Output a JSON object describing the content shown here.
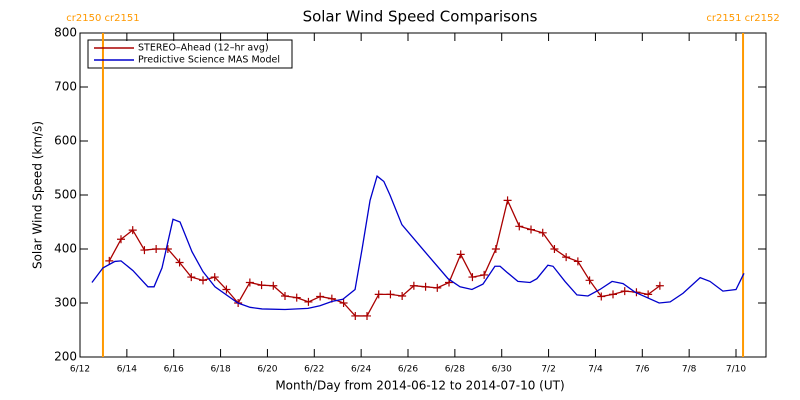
{
  "chart_data": {
    "type": "line",
    "title": "Solar Wind Speed Comparisons",
    "xlabel": "Month/Day from 2014-06-12 to 2014-07-10 (UT)",
    "ylabel": "Solar Wind Speed (km/s)",
    "xlim": [
      0,
      29.28
    ],
    "ylim": [
      200,
      800
    ],
    "yticks": [
      200,
      300,
      400,
      500,
      600,
      700,
      800
    ],
    "xticks": [
      {
        "value": 0,
        "label": "6/12"
      },
      {
        "value": 2,
        "label": "6/14"
      },
      {
        "value": 4,
        "label": "6/16"
      },
      {
        "value": 6,
        "label": "6/18"
      },
      {
        "value": 8,
        "label": "6/20"
      },
      {
        "value": 10,
        "label": "6/22"
      },
      {
        "value": 12,
        "label": "6/24"
      },
      {
        "value": 14,
        "label": "6/26"
      },
      {
        "value": 16,
        "label": "6/28"
      },
      {
        "value": 18,
        "label": "6/30"
      },
      {
        "value": 20,
        "label": "7/2"
      },
      {
        "value": 22,
        "label": "7/4"
      },
      {
        "value": 24,
        "label": "7/6"
      },
      {
        "value": 26,
        "label": "7/8"
      },
      {
        "value": 28,
        "label": "7/10"
      }
    ],
    "legend": "upper left",
    "markers": [
      {
        "x": 0.98,
        "label": "cr2150 cr2151",
        "color": "#ff9900"
      },
      {
        "x": 28.3,
        "label": "cr2151 cr2152",
        "color": "#ff9900"
      }
    ],
    "series": [
      {
        "name": "STEREO–Ahead (12–hr avg)",
        "color": "#aa0000",
        "marker": "plus",
        "x": [
          1.25,
          1.75,
          2.25,
          2.75,
          3.25,
          3.75,
          4.25,
          4.75,
          5.25,
          5.75,
          6.25,
          6.75,
          7.25,
          7.75,
          8.25,
          8.75,
          9.25,
          9.75,
          10.25,
          10.75,
          11.25,
          11.75,
          12.25,
          12.75,
          13.25,
          13.75,
          14.25,
          14.75,
          15.25,
          15.75,
          16.25,
          16.75,
          17.25,
          17.75,
          18.25,
          18.75,
          19.25,
          19.75,
          20.25,
          20.75,
          21.25,
          21.75,
          22.25,
          22.75,
          23.25,
          23.75,
          24.25,
          24.75
        ],
        "values": [
          378,
          418,
          435,
          398,
          400,
          400,
          375,
          348,
          342,
          348,
          325,
          300,
          338,
          333,
          332,
          313,
          310,
          302,
          312,
          308,
          300,
          276,
          276,
          316,
          316,
          313,
          332,
          330,
          328,
          338,
          390,
          348,
          352,
          400,
          490,
          442,
          436,
          430,
          400,
          385,
          377,
          342,
          312,
          316,
          322,
          320,
          316,
          332
        ]
      },
      {
        "name": "Predictive Science MAS Model",
        "color": "#0000cc",
        "marker": "none",
        "x": [
          0.51,
          0.98,
          1.49,
          1.75,
          2.26,
          2.9,
          3.16,
          3.5,
          3.97,
          4.27,
          4.78,
          5.25,
          5.76,
          6.74,
          7.26,
          7.77,
          8.75,
          9.73,
          10.24,
          10.76,
          11.22,
          11.74,
          12.04,
          12.38,
          12.68,
          12.97,
          13.23,
          13.74,
          14.72,
          15.71,
          16.22,
          16.73,
          17.2,
          17.71,
          17.93,
          18.22,
          18.69,
          19.21,
          19.5,
          19.97,
          20.19,
          20.7,
          21.21,
          21.68,
          22.19,
          22.71,
          23.18,
          23.69,
          24.72,
          25.19,
          25.74,
          26.47,
          26.89,
          27.44,
          28.0,
          28.34
        ],
        "values": [
          338,
          365,
          377,
          378,
          360,
          330,
          330,
          365,
          455,
          450,
          395,
          358,
          330,
          300,
          292,
          289,
          288,
          290,
          295,
          303,
          307,
          325,
          400,
          490,
          535,
          525,
          500,
          445,
          395,
          345,
          330,
          325,
          335,
          368,
          368,
          357,
          340,
          338,
          345,
          370,
          368,
          340,
          315,
          313,
          325,
          340,
          336,
          320,
          300,
          302,
          318,
          347,
          340,
          322,
          325,
          355
        ]
      }
    ]
  }
}
